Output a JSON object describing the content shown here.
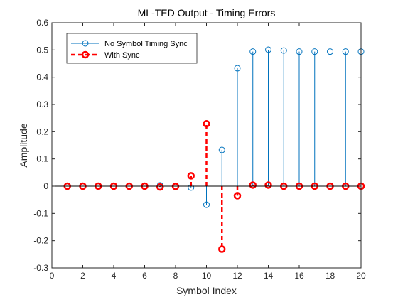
{
  "chart_data": {
    "type": "stem",
    "title": "ML-TED Output - Timing Errors",
    "xlabel": "Symbol Index",
    "ylabel": "Amplitude",
    "xlim": [
      0,
      20
    ],
    "ylim": [
      -0.3,
      0.6
    ],
    "xticks": [
      0,
      2,
      4,
      6,
      8,
      10,
      12,
      14,
      16,
      18,
      20
    ],
    "yticks": [
      -0.3,
      -0.2,
      -0.1,
      0,
      0.1,
      0.2,
      0.3,
      0.4,
      0.5,
      0.6
    ],
    "xtick_labels": [
      "0",
      "2",
      "4",
      "6",
      "8",
      "10",
      "12",
      "14",
      "16",
      "18",
      "20"
    ],
    "ytick_labels": [
      "-0.3",
      "-0.2",
      "-0.1",
      "0",
      "0.1",
      "0.2",
      "0.3",
      "0.4",
      "0.5",
      "0.6"
    ],
    "grid": false,
    "legend_position": "top-left",
    "series": [
      {
        "name": "No Symbol Timing Sync",
        "color": "#0072BD",
        "line_style": "solid",
        "marker": "circle",
        "x": [
          1,
          2,
          3,
          4,
          5,
          6,
          7,
          8,
          9,
          10,
          11,
          12,
          13,
          14,
          15,
          16,
          17,
          18,
          19,
          20
        ],
        "values": [
          0,
          0,
          0,
          0,
          0,
          0,
          0.003,
          0,
          -0.005,
          -0.068,
          0.133,
          0.433,
          0.494,
          0.501,
          0.498,
          0.494,
          0.494,
          0.494,
          0.494,
          0.494
        ]
      },
      {
        "name": "With Sync",
        "color": "#FF0000",
        "line_style": "dashed",
        "marker": "circle-bold",
        "x": [
          1,
          2,
          3,
          4,
          5,
          6,
          7,
          8,
          9,
          10,
          11,
          12,
          13,
          14,
          15,
          16,
          17,
          18,
          19,
          20
        ],
        "values": [
          0,
          0,
          0,
          0,
          0,
          0,
          -0.003,
          -0.001,
          0.038,
          0.229,
          -0.231,
          -0.035,
          0.004,
          0.004,
          0,
          0,
          0,
          0,
          0,
          0
        ]
      }
    ]
  }
}
